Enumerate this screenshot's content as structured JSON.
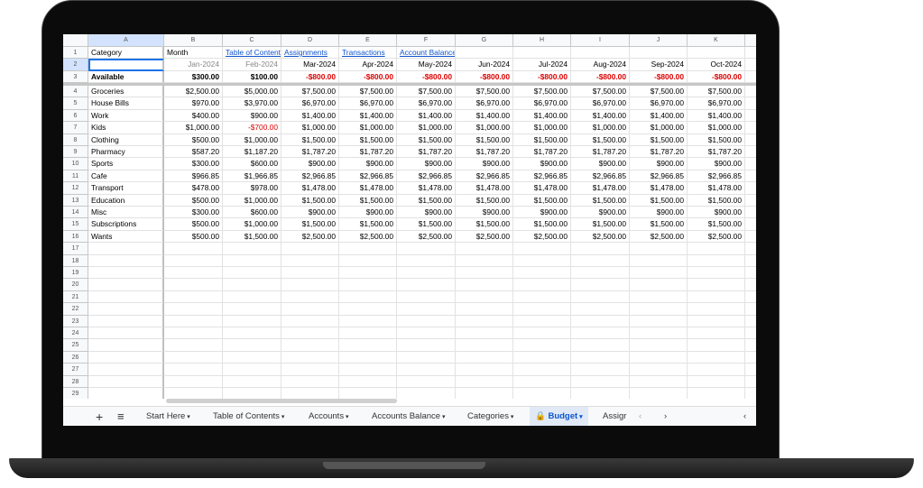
{
  "columns": [
    "A",
    "B",
    "C",
    "D",
    "E",
    "F",
    "G",
    "H",
    "I",
    "J",
    "K"
  ],
  "row1": [
    "Category",
    "Month",
    "Table of Content",
    "Assignments",
    "Transactions",
    "Account Balances"
  ],
  "row2": [
    "",
    "Jan-2024",
    "Feb-2024",
    "Mar-2024",
    "Apr-2024",
    "May-2024",
    "Jun-2024",
    "Jul-2024",
    "Aug-2024",
    "Sep-2024",
    "Oct-2024"
  ],
  "row3": [
    "Available",
    "$300.00",
    "$100.00",
    "-$800.00",
    "-$800.00",
    "-$800.00",
    "-$800.00",
    "-$800.00",
    "-$800.00",
    "-$800.00",
    "-$800.00"
  ],
  "categories": [
    {
      "name": "Groceries",
      "values": [
        "$2,500.00",
        "$5,000.00",
        "$7,500.00",
        "$7,500.00",
        "$7,500.00",
        "$7,500.00",
        "$7,500.00",
        "$7,500.00",
        "$7,500.00",
        "$7,500.00"
      ]
    },
    {
      "name": "House Bills",
      "values": [
        "$970.00",
        "$3,970.00",
        "$6,970.00",
        "$6,970.00",
        "$6,970.00",
        "$6,970.00",
        "$6,970.00",
        "$6,970.00",
        "$6,970.00",
        "$6,970.00"
      ]
    },
    {
      "name": "Work",
      "values": [
        "$400.00",
        "$900.00",
        "$1,400.00",
        "$1,400.00",
        "$1,400.00",
        "$1,400.00",
        "$1,400.00",
        "$1,400.00",
        "$1,400.00",
        "$1,400.00"
      ]
    },
    {
      "name": "Kids",
      "values": [
        "$1,000.00",
        "-$700.00",
        "$1,000.00",
        "$1,000.00",
        "$1,000.00",
        "$1,000.00",
        "$1,000.00",
        "$1,000.00",
        "$1,000.00",
        "$1,000.00"
      ]
    },
    {
      "name": "Clothing",
      "values": [
        "$500.00",
        "$1,000.00",
        "$1,500.00",
        "$1,500.00",
        "$1,500.00",
        "$1,500.00",
        "$1,500.00",
        "$1,500.00",
        "$1,500.00",
        "$1,500.00"
      ]
    },
    {
      "name": "Pharmacy",
      "values": [
        "$587.20",
        "$1,187.20",
        "$1,787.20",
        "$1,787.20",
        "$1,787.20",
        "$1,787.20",
        "$1,787.20",
        "$1,787.20",
        "$1,787.20",
        "$1,787.20"
      ]
    },
    {
      "name": "Sports",
      "values": [
        "$300.00",
        "$600.00",
        "$900.00",
        "$900.00",
        "$900.00",
        "$900.00",
        "$900.00",
        "$900.00",
        "$900.00",
        "$900.00"
      ]
    },
    {
      "name": "Cafe",
      "values": [
        "$966.85",
        "$1,966.85",
        "$2,966.85",
        "$2,966.85",
        "$2,966.85",
        "$2,966.85",
        "$2,966.85",
        "$2,966.85",
        "$2,966.85",
        "$2,966.85"
      ]
    },
    {
      "name": "Transport",
      "values": [
        "$478.00",
        "$978.00",
        "$1,478.00",
        "$1,478.00",
        "$1,478.00",
        "$1,478.00",
        "$1,478.00",
        "$1,478.00",
        "$1,478.00",
        "$1,478.00"
      ]
    },
    {
      "name": "Education",
      "values": [
        "$500.00",
        "$1,000.00",
        "$1,500.00",
        "$1,500.00",
        "$1,500.00",
        "$1,500.00",
        "$1,500.00",
        "$1,500.00",
        "$1,500.00",
        "$1,500.00"
      ]
    },
    {
      "name": "Misc",
      "values": [
        "$300.00",
        "$600.00",
        "$900.00",
        "$900.00",
        "$900.00",
        "$900.00",
        "$900.00",
        "$900.00",
        "$900.00",
        "$900.00"
      ]
    },
    {
      "name": "Subscriptions",
      "values": [
        "$500.00",
        "$1,000.00",
        "$1,500.00",
        "$1,500.00",
        "$1,500.00",
        "$1,500.00",
        "$1,500.00",
        "$1,500.00",
        "$1,500.00",
        "$1,500.00"
      ]
    },
    {
      "name": "Wants",
      "values": [
        "$500.00",
        "$1,500.00",
        "$2,500.00",
        "$2,500.00",
        "$2,500.00",
        "$2,500.00",
        "$2,500.00",
        "$2,500.00",
        "$2,500.00",
        "$2,500.00"
      ]
    }
  ],
  "row_count": 29,
  "tabs": {
    "add_icon": "+",
    "menu_icon": "≡",
    "items": [
      "Start Here",
      "Table of Contents",
      "Accounts",
      "Accounts Balance",
      "Categories",
      "Budget",
      "Assigr"
    ],
    "active": "Budget",
    "prev": "‹",
    "next": "›",
    "collapse": "‹"
  },
  "colors": {
    "accent": "#1a73e8",
    "negative": "#dd0000",
    "link": "#1155cc"
  }
}
